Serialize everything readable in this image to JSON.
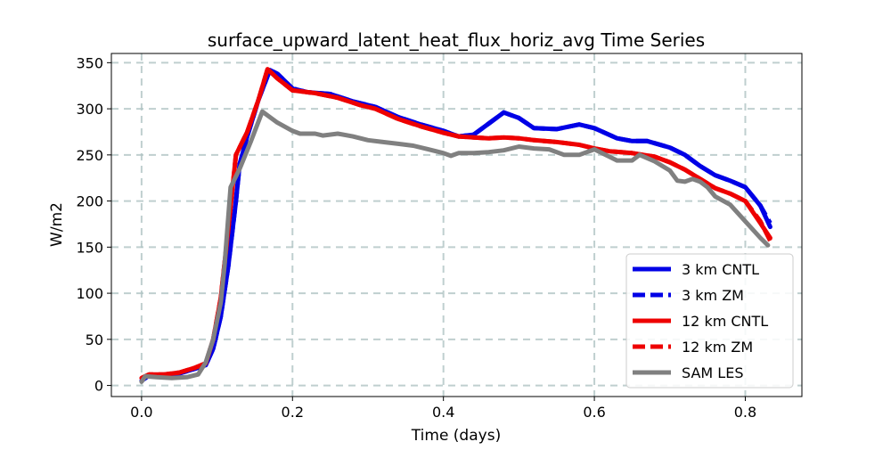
{
  "chart_data": {
    "type": "line",
    "title": "surface_upward_latent_heat_flux_horiz_avg Time Series",
    "xlabel": "Time (days)",
    "ylabel": "W/m2",
    "xlim": [
      -0.04,
      0.875
    ],
    "ylim": [
      -12,
      360
    ],
    "xticks": [
      0.0,
      0.2,
      0.4,
      0.6,
      0.8
    ],
    "xtick_labels": [
      "0.0",
      "0.2",
      "0.4",
      "0.6",
      "0.8"
    ],
    "yticks": [
      0,
      50,
      100,
      150,
      200,
      250,
      300,
      350
    ],
    "ytick_labels": [
      "0",
      "50",
      "100",
      "150",
      "200",
      "250",
      "300",
      "350"
    ],
    "grid": true,
    "legend_position": "lower-right",
    "series": [
      {
        "name": "3 km CNTL",
        "color": "#0000e6",
        "style": "solid",
        "points": [
          [
            0.0,
            5
          ],
          [
            0.01,
            11
          ],
          [
            0.03,
            11
          ],
          [
            0.05,
            13
          ],
          [
            0.07,
            18
          ],
          [
            0.085,
            22
          ],
          [
            0.095,
            40
          ],
          [
            0.105,
            75
          ],
          [
            0.115,
            130
          ],
          [
            0.125,
            200
          ],
          [
            0.13,
            240
          ],
          [
            0.14,
            270
          ],
          [
            0.155,
            310
          ],
          [
            0.17,
            342
          ],
          [
            0.18,
            338
          ],
          [
            0.2,
            322
          ],
          [
            0.22,
            318
          ],
          [
            0.25,
            316
          ],
          [
            0.28,
            308
          ],
          [
            0.31,
            302
          ],
          [
            0.34,
            291
          ],
          [
            0.37,
            283
          ],
          [
            0.4,
            276
          ],
          [
            0.42,
            270
          ],
          [
            0.44,
            272
          ],
          [
            0.46,
            284
          ],
          [
            0.48,
            296
          ],
          [
            0.5,
            290
          ],
          [
            0.52,
            279
          ],
          [
            0.55,
            278
          ],
          [
            0.58,
            283
          ],
          [
            0.6,
            279
          ],
          [
            0.63,
            268
          ],
          [
            0.65,
            265
          ],
          [
            0.67,
            265
          ],
          [
            0.7,
            258
          ],
          [
            0.72,
            250
          ],
          [
            0.74,
            238
          ],
          [
            0.76,
            228
          ],
          [
            0.78,
            222
          ],
          [
            0.8,
            215
          ],
          [
            0.82,
            195
          ],
          [
            0.833,
            172
          ]
        ]
      },
      {
        "name": "3 km ZM",
        "color": "#0000e6",
        "style": "dashed",
        "points": [
          [
            0.0,
            5
          ],
          [
            0.01,
            11
          ],
          [
            0.03,
            11
          ],
          [
            0.05,
            13
          ],
          [
            0.07,
            18
          ],
          [
            0.085,
            22
          ],
          [
            0.095,
            40
          ],
          [
            0.105,
            75
          ],
          [
            0.115,
            130
          ],
          [
            0.125,
            200
          ],
          [
            0.13,
            240
          ],
          [
            0.14,
            270
          ],
          [
            0.155,
            310
          ],
          [
            0.17,
            342
          ],
          [
            0.18,
            338
          ],
          [
            0.2,
            322
          ],
          [
            0.22,
            318
          ],
          [
            0.25,
            316
          ],
          [
            0.28,
            308
          ],
          [
            0.31,
            302
          ],
          [
            0.34,
            291
          ],
          [
            0.37,
            283
          ],
          [
            0.4,
            276
          ],
          [
            0.42,
            270
          ],
          [
            0.44,
            272
          ],
          [
            0.46,
            284
          ],
          [
            0.48,
            296
          ],
          [
            0.5,
            290
          ],
          [
            0.52,
            279
          ],
          [
            0.55,
            278
          ],
          [
            0.58,
            283
          ],
          [
            0.6,
            279
          ],
          [
            0.63,
            268
          ],
          [
            0.65,
            265
          ],
          [
            0.67,
            265
          ],
          [
            0.7,
            258
          ],
          [
            0.72,
            250
          ],
          [
            0.74,
            238
          ],
          [
            0.76,
            228
          ],
          [
            0.78,
            222
          ],
          [
            0.8,
            215
          ],
          [
            0.82,
            195
          ],
          [
            0.833,
            176
          ]
        ]
      },
      {
        "name": "12 km CNTL",
        "color": "#ee0000",
        "style": "solid",
        "points": [
          [
            0.0,
            8
          ],
          [
            0.01,
            12
          ],
          [
            0.03,
            12
          ],
          [
            0.05,
            14
          ],
          [
            0.07,
            19
          ],
          [
            0.085,
            24
          ],
          [
            0.095,
            50
          ],
          [
            0.105,
            95
          ],
          [
            0.115,
            170
          ],
          [
            0.125,
            250
          ],
          [
            0.14,
            275
          ],
          [
            0.155,
            310
          ],
          [
            0.167,
            343
          ],
          [
            0.18,
            333
          ],
          [
            0.2,
            320
          ],
          [
            0.23,
            317
          ],
          [
            0.26,
            312
          ],
          [
            0.29,
            304
          ],
          [
            0.31,
            300
          ],
          [
            0.34,
            289
          ],
          [
            0.37,
            281
          ],
          [
            0.4,
            274
          ],
          [
            0.42,
            270
          ],
          [
            0.44,
            269
          ],
          [
            0.46,
            268
          ],
          [
            0.48,
            269
          ],
          [
            0.5,
            268
          ],
          [
            0.52,
            266
          ],
          [
            0.55,
            264
          ],
          [
            0.58,
            261
          ],
          [
            0.6,
            257
          ],
          [
            0.62,
            254
          ],
          [
            0.65,
            252
          ],
          [
            0.68,
            248
          ],
          [
            0.7,
            242
          ],
          [
            0.72,
            234
          ],
          [
            0.74,
            224
          ],
          [
            0.76,
            214
          ],
          [
            0.78,
            208
          ],
          [
            0.8,
            200
          ],
          [
            0.82,
            176
          ],
          [
            0.833,
            160
          ]
        ]
      },
      {
        "name": "12 km ZM",
        "color": "#ee0000",
        "style": "dashed",
        "points": [
          [
            0.0,
            8
          ],
          [
            0.01,
            12
          ],
          [
            0.03,
            12
          ],
          [
            0.05,
            14
          ],
          [
            0.07,
            19
          ],
          [
            0.085,
            24
          ],
          [
            0.095,
            50
          ],
          [
            0.105,
            95
          ],
          [
            0.115,
            170
          ],
          [
            0.125,
            250
          ],
          [
            0.14,
            275
          ],
          [
            0.155,
            310
          ],
          [
            0.167,
            343
          ],
          [
            0.18,
            333
          ],
          [
            0.2,
            320
          ],
          [
            0.23,
            317
          ],
          [
            0.26,
            312
          ],
          [
            0.29,
            304
          ],
          [
            0.31,
            300
          ],
          [
            0.34,
            289
          ],
          [
            0.37,
            281
          ],
          [
            0.4,
            274
          ],
          [
            0.42,
            270
          ],
          [
            0.44,
            269
          ],
          [
            0.46,
            268
          ],
          [
            0.48,
            269
          ],
          [
            0.5,
            268
          ],
          [
            0.52,
            266
          ],
          [
            0.55,
            264
          ],
          [
            0.58,
            261
          ],
          [
            0.6,
            257
          ],
          [
            0.62,
            254
          ],
          [
            0.65,
            252
          ],
          [
            0.68,
            248
          ],
          [
            0.7,
            242
          ],
          [
            0.72,
            234
          ],
          [
            0.74,
            224
          ],
          [
            0.76,
            214
          ],
          [
            0.78,
            208
          ],
          [
            0.8,
            200
          ],
          [
            0.82,
            178
          ],
          [
            0.833,
            157
          ]
        ]
      },
      {
        "name": "SAM LES",
        "color": "#808080",
        "style": "solid",
        "points": [
          [
            0.0,
            4
          ],
          [
            0.005,
            10
          ],
          [
            0.02,
            9
          ],
          [
            0.04,
            8
          ],
          [
            0.06,
            9
          ],
          [
            0.075,
            12
          ],
          [
            0.085,
            25
          ],
          [
            0.095,
            50
          ],
          [
            0.105,
            90
          ],
          [
            0.11,
            130
          ],
          [
            0.118,
            215
          ],
          [
            0.13,
            235
          ],
          [
            0.145,
            265
          ],
          [
            0.16,
            297
          ],
          [
            0.18,
            285
          ],
          [
            0.2,
            276
          ],
          [
            0.21,
            273
          ],
          [
            0.23,
            273
          ],
          [
            0.24,
            271
          ],
          [
            0.26,
            273
          ],
          [
            0.28,
            270
          ],
          [
            0.3,
            266
          ],
          [
            0.32,
            264
          ],
          [
            0.34,
            262
          ],
          [
            0.36,
            260
          ],
          [
            0.38,
            256
          ],
          [
            0.4,
            252
          ],
          [
            0.41,
            249
          ],
          [
            0.42,
            252
          ],
          [
            0.44,
            252
          ],
          [
            0.46,
            253
          ],
          [
            0.48,
            255
          ],
          [
            0.5,
            259
          ],
          [
            0.52,
            257
          ],
          [
            0.54,
            256
          ],
          [
            0.56,
            250
          ],
          [
            0.58,
            250
          ],
          [
            0.6,
            256
          ],
          [
            0.62,
            248
          ],
          [
            0.63,
            244
          ],
          [
            0.65,
            244
          ],
          [
            0.66,
            250
          ],
          [
            0.68,
            243
          ],
          [
            0.7,
            233
          ],
          [
            0.71,
            222
          ],
          [
            0.72,
            221
          ],
          [
            0.73,
            224
          ],
          [
            0.74,
            221
          ],
          [
            0.75,
            215
          ],
          [
            0.76,
            205
          ],
          [
            0.78,
            196
          ],
          [
            0.8,
            178
          ],
          [
            0.82,
            160
          ],
          [
            0.83,
            152
          ]
        ]
      }
    ]
  }
}
